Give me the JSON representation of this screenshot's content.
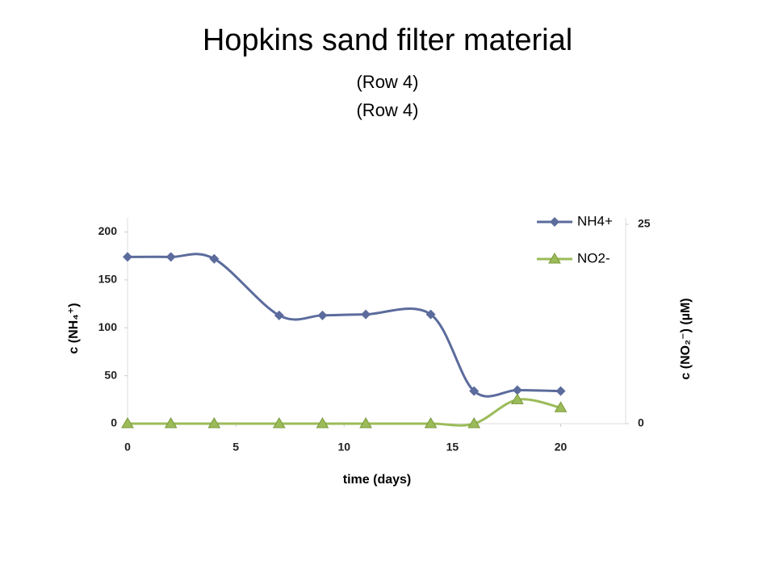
{
  "chart_data": {
    "type": "line",
    "title": "Hopkins sand filter material",
    "subtitle": [
      "(Row 4)",
      "(Row 4)"
    ],
    "x_label": "time (days)",
    "y_label": "c (NH₄⁺)",
    "y2_label": "c (NO₂⁻) (µM)",
    "x": [
      0,
      2,
      4,
      7,
      9,
      11,
      14,
      16,
      18,
      20
    ],
    "series": [
      {
        "name": "NH4+",
        "color": "#5b6b9c",
        "marker": "diamond",
        "values": [
          174,
          174,
          172,
          113,
          113,
          114,
          114,
          34,
          35,
          34
        ]
      },
      {
        "name": "NO2-",
        "color": "#9bbb59",
        "marker": "triangle",
        "axis": "y2",
        "values": [
          0,
          0,
          0,
          0,
          0,
          0,
          0,
          0,
          3,
          2
        ]
      }
    ],
    "xlim": [
      0,
      23
    ],
    "xticks": [
      0,
      5,
      10,
      15,
      20
    ],
    "ylim": [
      0,
      208
    ],
    "yticks": [
      0,
      50,
      100,
      150,
      200
    ],
    "y2lim": [
      0,
      25
    ],
    "y2ticks": [
      0,
      25
    ],
    "legend": "top-right",
    "smooth": true
  }
}
